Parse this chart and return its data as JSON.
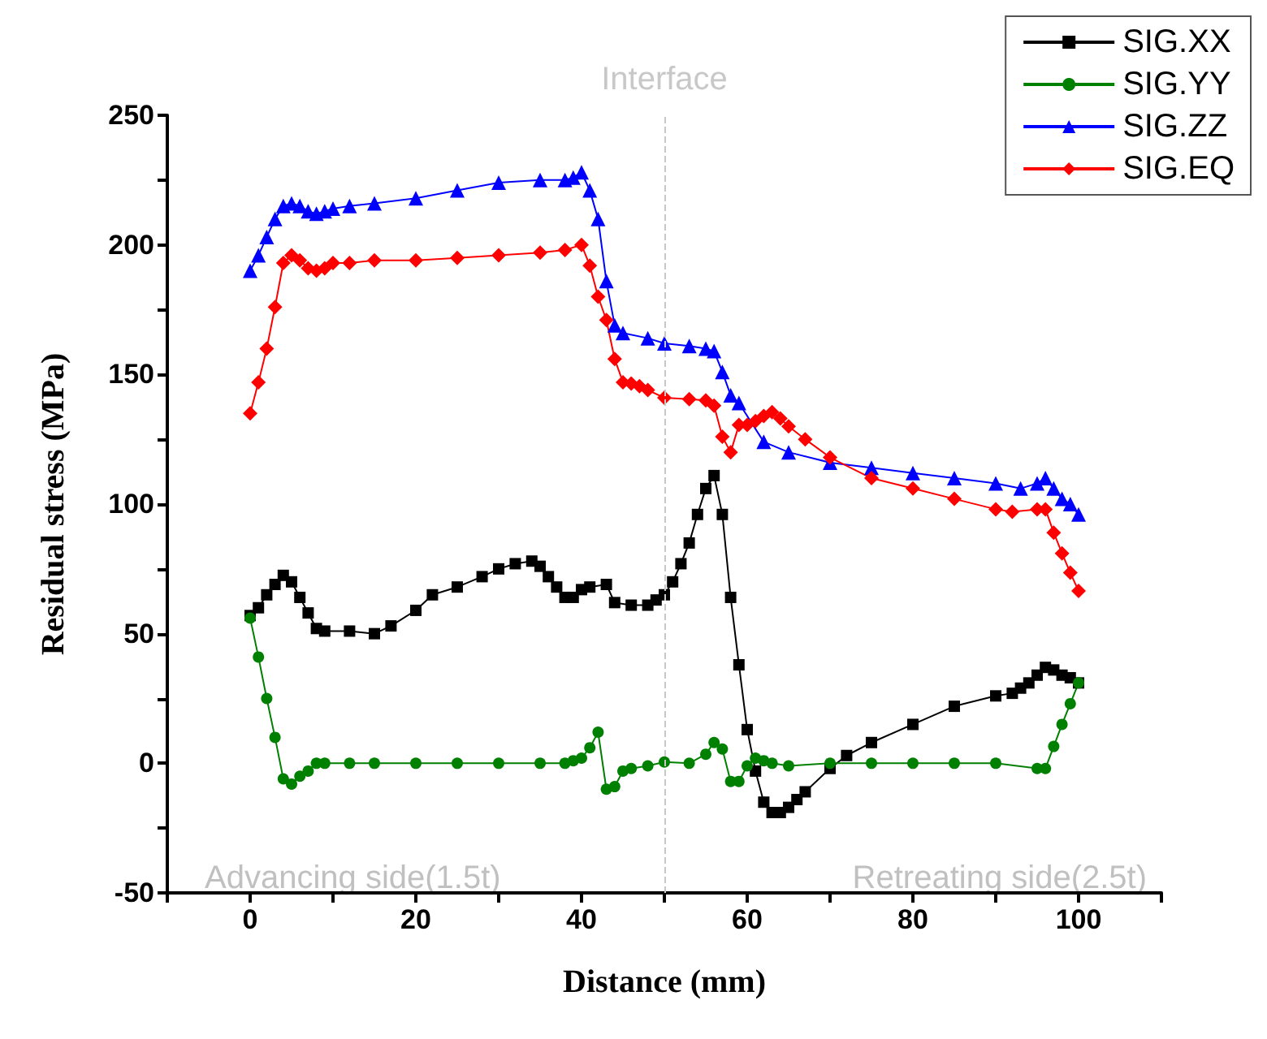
{
  "chart_data": {
    "type": "line",
    "xlabel": "Distance (mm)",
    "ylabel": "Residual stress (MPa)",
    "xlim": [
      -10,
      110
    ],
    "ylim": [
      -50,
      250
    ],
    "xticks": [
      {
        "value": -10,
        "label": null
      },
      0,
      {
        "value": 10,
        "label": null
      },
      20,
      {
        "value": 30,
        "label": null
      },
      40,
      {
        "value": 50,
        "label": null
      },
      60,
      {
        "value": 70,
        "label": null
      },
      80,
      {
        "value": 90,
        "label": null
      },
      100,
      {
        "value": 110,
        "label": null
      }
    ],
    "yticks": [
      -50,
      {
        "value": -25,
        "label": null
      },
      0,
      {
        "value": 25,
        "label": null
      },
      50,
      {
        "value": 75,
        "label": null
      },
      100,
      {
        "value": 125,
        "label": null
      },
      150,
      {
        "value": 175,
        "label": null
      },
      200,
      {
        "value": 225,
        "label": null
      },
      250
    ],
    "grid": false,
    "legend": "top right",
    "ref_lines": [
      {
        "axis": "x",
        "value": 50,
        "label": "Interface",
        "color": "#c8c8c8",
        "line_style": "dashed"
      }
    ],
    "annotations": [
      "Advancing side(1.5t)",
      "Retreating side(2.5t)"
    ],
    "series": [
      {
        "name": "SIG.XX",
        "color": "#000000",
        "marker": "square",
        "x": [
          0,
          1,
          2,
          3,
          4,
          5,
          6,
          7,
          8,
          9,
          12,
          15,
          17,
          20,
          22,
          25,
          28,
          30,
          32,
          34,
          35,
          36,
          37,
          38,
          39,
          40,
          41,
          43,
          44,
          46,
          48,
          49,
          50,
          51,
          52,
          53,
          54,
          55,
          56,
          57,
          58,
          59,
          60,
          61,
          62,
          63,
          64,
          65,
          66,
          67,
          70,
          72,
          75,
          80,
          85,
          90,
          92,
          93,
          94,
          95,
          96,
          97,
          98,
          99,
          100
        ],
        "values": [
          57,
          60,
          65,
          69,
          72.5,
          70,
          64,
          58,
          52,
          51,
          51,
          50,
          53,
          59,
          65,
          68,
          72,
          75,
          77,
          78,
          76,
          72,
          68,
          64,
          64,
          67,
          68,
          69,
          62,
          61,
          61,
          63,
          65,
          70,
          77,
          85,
          96,
          106,
          111,
          96,
          64,
          38,
          13,
          -3,
          -15,
          -19,
          -19,
          -17,
          -14,
          -11,
          -2,
          3,
          8,
          15,
          22,
          26,
          27,
          29,
          31,
          34,
          37,
          36,
          34,
          33,
          31
        ]
      },
      {
        "name": "SIG.YY",
        "color": "#008000",
        "marker": "circle",
        "x": [
          0,
          1,
          2,
          3,
          4,
          5,
          6,
          7,
          8,
          9,
          12,
          15,
          20,
          25,
          30,
          35,
          38,
          39,
          40,
          41,
          42,
          43,
          44,
          45,
          46,
          48,
          50,
          53,
          55,
          56,
          57,
          58,
          59,
          60,
          61,
          62,
          63,
          65,
          70,
          75,
          80,
          85,
          90,
          95,
          96,
          97,
          98,
          99,
          100
        ],
        "values": [
          56,
          41,
          25,
          10,
          -6,
          -8,
          -5,
          -3,
          0,
          0,
          0,
          0,
          0,
          0,
          0,
          0,
          0,
          1,
          2,
          6,
          12,
          -10,
          -9,
          -3,
          -2,
          -1,
          0.5,
          0,
          3.5,
          8,
          5.5,
          -7,
          -7,
          -1,
          2,
          1,
          0,
          -1,
          0,
          0,
          0,
          0,
          0,
          -2,
          -2,
          6.5,
          15,
          23,
          31
        ]
      },
      {
        "name": "SIG.ZZ",
        "color": "#0000ff",
        "marker": "triangle",
        "x": [
          0,
          1,
          2,
          3,
          4,
          5,
          6,
          7,
          8,
          9,
          10,
          12,
          15,
          20,
          25,
          30,
          35,
          38,
          39,
          40,
          41,
          42,
          43,
          44,
          45,
          48,
          50,
          53,
          55,
          56,
          57,
          58,
          59,
          62,
          65,
          70,
          75,
          80,
          85,
          90,
          93,
          95,
          96,
          97,
          98,
          99,
          100
        ],
        "values": [
          190,
          196,
          203,
          210,
          215,
          216,
          215,
          213,
          212,
          213,
          214,
          215,
          216,
          218,
          221,
          224,
          225,
          225,
          226,
          228,
          221,
          210,
          186,
          169,
          166,
          164,
          162,
          161,
          160,
          159,
          151,
          142,
          139,
          124,
          120,
          116,
          114,
          112,
          110,
          108,
          106,
          108,
          110,
          106,
          102,
          100,
          96
        ]
      },
      {
        "name": "SIG.EQ",
        "color": "#ff0000",
        "marker": "diamond",
        "x": [
          0,
          1,
          2,
          3,
          4,
          5,
          6,
          7,
          8,
          9,
          10,
          12,
          15,
          20,
          25,
          30,
          35,
          38,
          40,
          41,
          42,
          43,
          44,
          45,
          46,
          47,
          48,
          50,
          53,
          55,
          56,
          57,
          58,
          59,
          60,
          61,
          62,
          63,
          64,
          65,
          67,
          70,
          75,
          80,
          85,
          90,
          92,
          95,
          96,
          97,
          98,
          99,
          100
        ],
        "values": [
          135,
          147,
          160,
          176,
          193,
          196,
          194,
          191,
          190,
          191,
          193,
          193,
          194,
          194,
          195,
          196,
          197,
          198,
          200,
          192,
          180,
          171,
          156,
          147,
          146.5,
          145.5,
          144,
          141,
          140.5,
          140,
          138,
          126,
          120,
          130.5,
          130.5,
          132,
          134,
          135.5,
          133,
          130,
          125,
          118,
          110,
          106,
          102,
          98,
          97,
          98,
          98,
          89,
          81,
          73.5,
          66.5
        ]
      }
    ]
  }
}
